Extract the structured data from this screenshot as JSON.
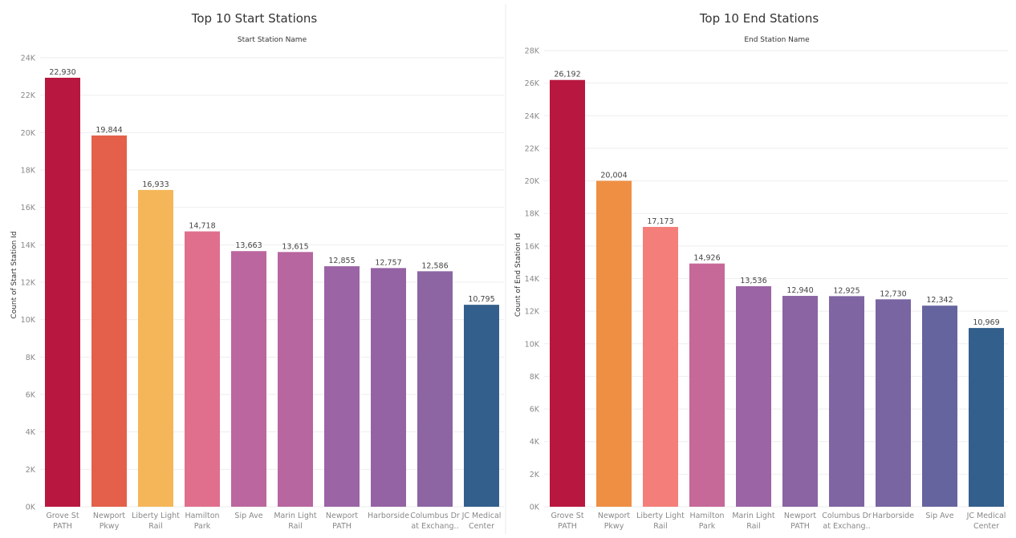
{
  "chart_data": [
    {
      "type": "bar",
      "title": "Top 10 Start Stations",
      "subtitle": "Start Station Name",
      "ylabel": "Count of Start Station Id",
      "xlabel": "",
      "ylim": [
        0,
        24000
      ],
      "yticks": [
        {
          "value": 0,
          "label": "0K"
        },
        {
          "value": 2000,
          "label": "2K"
        },
        {
          "value": 4000,
          "label": "4K"
        },
        {
          "value": 6000,
          "label": "6K"
        },
        {
          "value": 8000,
          "label": "8K"
        },
        {
          "value": 10000,
          "label": "10K"
        },
        {
          "value": 12000,
          "label": "12K"
        },
        {
          "value": 14000,
          "label": "14K"
        },
        {
          "value": 16000,
          "label": "16K"
        },
        {
          "value": 18000,
          "label": "18K"
        },
        {
          "value": 20000,
          "label": "20K"
        },
        {
          "value": 22000,
          "label": "22K"
        },
        {
          "value": 24000,
          "label": "24K"
        }
      ],
      "grid": true,
      "legend": "none",
      "categories": [
        [
          "Grove St",
          "PATH"
        ],
        [
          "Newport",
          "Pkwy"
        ],
        [
          "Liberty Light",
          "Rail"
        ],
        [
          "Hamilton",
          "Park"
        ],
        [
          "Sip Ave"
        ],
        [
          "Marin Light",
          "Rail"
        ],
        [
          "Newport",
          "PATH"
        ],
        [
          "Harborside"
        ],
        [
          "Columbus Dr",
          "at Exchang.."
        ],
        [
          "JC Medical",
          "Center"
        ]
      ],
      "values": [
        22930,
        19844,
        16933,
        14718,
        13663,
        13615,
        12855,
        12757,
        12586,
        10795
      ],
      "value_labels": [
        "22,930",
        "19,844",
        "16,933",
        "14,718",
        "13,663",
        "13,615",
        "12,855",
        "12,757",
        "12,586",
        "10,795"
      ],
      "colors": [
        "#b8173f",
        "#e4604a",
        "#f5b659",
        "#e06f8d",
        "#bb669f",
        "#b7669f",
        "#9b64a5",
        "#9463a4",
        "#8c65a2",
        "#335f8c"
      ]
    },
    {
      "type": "bar",
      "title": "Top 10 End Stations",
      "subtitle": "End Station Name",
      "ylabel": "Count of End Station Id",
      "xlabel": "",
      "ylim": [
        0,
        28000
      ],
      "yticks": [
        {
          "value": 0,
          "label": "0K"
        },
        {
          "value": 2000,
          "label": "2K"
        },
        {
          "value": 4000,
          "label": "4K"
        },
        {
          "value": 6000,
          "label": "6K"
        },
        {
          "value": 8000,
          "label": "8K"
        },
        {
          "value": 10000,
          "label": "10K"
        },
        {
          "value": 12000,
          "label": "12K"
        },
        {
          "value": 14000,
          "label": "14K"
        },
        {
          "value": 16000,
          "label": "16K"
        },
        {
          "value": 18000,
          "label": "18K"
        },
        {
          "value": 20000,
          "label": "20K"
        },
        {
          "value": 22000,
          "label": "22K"
        },
        {
          "value": 24000,
          "label": "24K"
        },
        {
          "value": 26000,
          "label": "26K"
        },
        {
          "value": 28000,
          "label": "28K"
        }
      ],
      "grid": true,
      "legend": "none",
      "categories": [
        [
          "Grove St",
          "PATH"
        ],
        [
          "Newport",
          "Pkwy"
        ],
        [
          "Liberty Light",
          "Rail"
        ],
        [
          "Hamilton",
          "Park"
        ],
        [
          "Marin Light",
          "Rail"
        ],
        [
          "Newport",
          "PATH"
        ],
        [
          "Columbus Dr",
          "at Exchang.."
        ],
        [
          "Harborside"
        ],
        [
          "Sip Ave"
        ],
        [
          "JC Medical",
          "Center"
        ]
      ],
      "values": [
        26192,
        20004,
        17173,
        14926,
        13536,
        12940,
        12925,
        12730,
        12342,
        10969
      ],
      "value_labels": [
        "26,192",
        "20,004",
        "17,173",
        "14,926",
        "13,536",
        "12,940",
        "12,925",
        "12,730",
        "12,342",
        "10,969"
      ],
      "colors": [
        "#b8173f",
        "#ee8f44",
        "#f47e79",
        "#c66898",
        "#9b64a5",
        "#8a64a3",
        "#7f65a2",
        "#7865a2",
        "#66649f",
        "#335f8c"
      ]
    }
  ]
}
